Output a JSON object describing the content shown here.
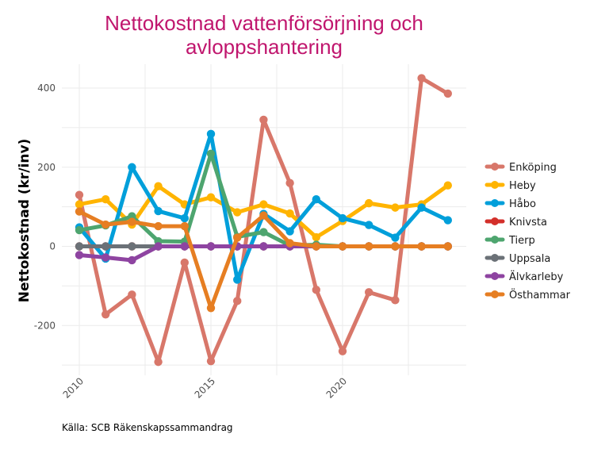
{
  "chart_data": {
    "type": "line",
    "title": "Nettokostnad vattenförsörjning och avloppshantering",
    "title_lines": [
      "Nettokostnad vattenförsörjning och",
      "avloppshantering"
    ],
    "title_color": "#C0166E",
    "xlabel": "",
    "ylabel": "Nettokostnad (kr/inv)",
    "caption": "Källa: SCB Räkenskapssammandrag",
    "x": [
      2010,
      2011,
      2012,
      2013,
      2014,
      2015,
      2016,
      2017,
      2018,
      2019,
      2020,
      2021,
      2022,
      2023,
      2024
    ],
    "xlim": [
      2009.3,
      2024.7
    ],
    "ylim": [
      -330,
      460
    ],
    "x_ticks": [
      2010,
      2015,
      2020
    ],
    "x_tick_labels": [
      "2010",
      "2015",
      "2020"
    ],
    "x_minor_grid": [
      2012.5,
      2017.5,
      2022.5
    ],
    "y_ticks": [
      -200,
      0,
      200,
      400
    ],
    "y_tick_labels": [
      "-200",
      "0",
      "200",
      "400"
    ],
    "y_minor_grid": [
      -300,
      -100,
      100,
      300
    ],
    "grid": true,
    "legend_position": "right",
    "series": [
      {
        "name": "Enköping",
        "color": "#D8776A",
        "values": [
          130,
          -172,
          -122,
          -292,
          -41,
          -290,
          -138,
          320,
          160,
          -110,
          -265,
          -116,
          -136,
          425,
          386
        ]
      },
      {
        "name": "Heby",
        "color": "#FFB400",
        "values": [
          106,
          119,
          55,
          152,
          106,
          124,
          86,
          106,
          83,
          23,
          64,
          109,
          98,
          106,
          154
        ]
      },
      {
        "name": "Håbo",
        "color": "#009FDA",
        "values": [
          48,
          -31,
          200,
          89,
          71,
          284,
          -84,
          82,
          38,
          119,
          71,
          54,
          22,
          98,
          66
        ]
      },
      {
        "name": "Knivsta",
        "color": "#D32F2A",
        "values": [
          0,
          0,
          0,
          0,
          0,
          0,
          0,
          0,
          0,
          0,
          0,
          0,
          0,
          0,
          0
        ]
      },
      {
        "name": "Tierp",
        "color": "#4EA56F",
        "values": [
          41,
          53,
          76,
          13,
          12,
          234,
          24,
          36,
          2,
          4,
          0,
          0,
          0,
          0,
          0
        ]
      },
      {
        "name": "Uppsala",
        "color": "#6B7177",
        "values": [
          0,
          0,
          0,
          0,
          0,
          0,
          0,
          0,
          0,
          0,
          0,
          0,
          0,
          0,
          0
        ]
      },
      {
        "name": "Älvkarleby",
        "color": "#8E44A1",
        "values": [
          -22,
          -28,
          -35,
          0,
          0,
          0,
          0,
          0,
          0,
          0,
          0,
          0,
          0,
          0,
          0
        ]
      },
      {
        "name": "Östhammar",
        "color": "#E67E22",
        "values": [
          88,
          55,
          62,
          51,
          51,
          -156,
          22,
          78,
          8,
          0,
          0,
          0,
          0,
          0,
          0
        ]
      }
    ]
  }
}
